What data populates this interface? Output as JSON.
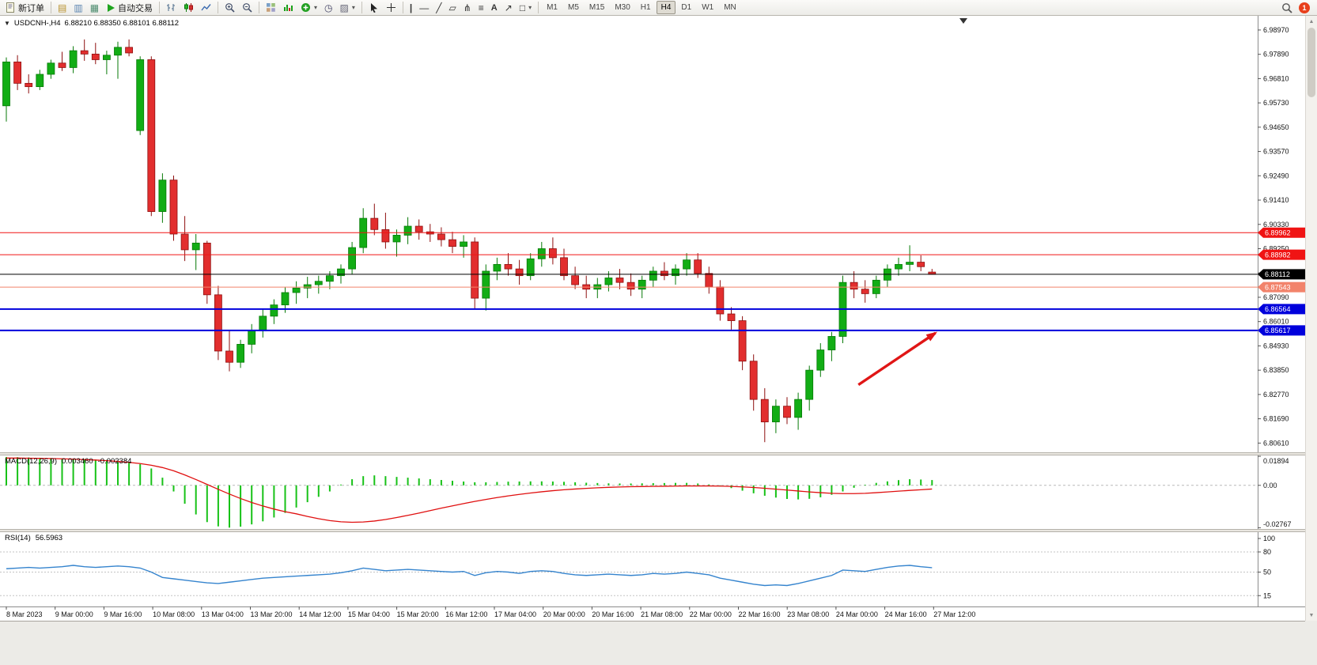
{
  "toolbar": {
    "new_order_label": "新订单",
    "autotrading_label": "自动交易",
    "timeframes": [
      "M1",
      "M5",
      "M15",
      "M30",
      "H1",
      "H4",
      "D1",
      "W1",
      "MN"
    ],
    "active_timeframe": "H4",
    "notification_badge": "1"
  },
  "chart": {
    "symbol_period": "USDCNH-,H4",
    "ohlc": "6.88210 6.88350 6.88101 6.88112"
  },
  "icons": {
    "one_click_caret": "▼",
    "caret_down": "▾",
    "new_chart": "▤",
    "profiles": "▥",
    "market_watch": "▦",
    "tile": "⊞",
    "clock": "◷",
    "snapshot": "▨",
    "vline": "|",
    "hline": "—",
    "trendline": "╱",
    "channel": "▱",
    "pitchfork": "⋔",
    "fibonacci": "≡",
    "text_tool": "A",
    "arrow_tool": "↗",
    "shapes": "□",
    "scrollbar_up": "▲",
    "scrollbar_down": "▼"
  },
  "colors": {
    "candle_up": "#12AD15",
    "candle_up_border": "#077A07",
    "candle_down": "#E22E2E",
    "candle_down_border": "#8E0F0F",
    "macd_histogram": "#17C217",
    "macd_signal": "#E01010",
    "rsi_line": "#3584CE",
    "hline_red": "#F01414",
    "hline_black": "#000000",
    "hline_salmon": "#F2836B",
    "hline_blue": "#0000DC",
    "arrow": "#E01616",
    "badge": "#E8401C",
    "background": "#FFFFFF"
  },
  "chart_data": {
    "type": "candlestick",
    "symbol": "USDCNH-",
    "period": "H4",
    "ohlc_current": {
      "open": "6.88210",
      "high": "6.88350",
      "low": "6.88101",
      "close": "6.88112"
    },
    "y_axis": {
      "min": 6.8061,
      "max": 6.9897,
      "ticks": [
        6.9897,
        6.9789,
        6.9681,
        6.9573,
        6.9465,
        6.9357,
        6.9249,
        6.9141,
        6.9033,
        6.8925,
        6.8817,
        6.8709,
        6.8601,
        6.8493,
        6.8385,
        6.8277,
        6.8169,
        6.8061
      ]
    },
    "x_labels": [
      "8 Mar 2023",
      "9 Mar 00:00",
      "9 Mar 16:00",
      "10 Mar 08:00",
      "13 Mar 04:00",
      "13 Mar 20:00",
      "14 Mar 12:00",
      "15 Mar 04:00",
      "15 Mar 20:00",
      "16 Mar 12:00",
      "17 Mar 04:00",
      "20 Mar 00:00",
      "20 Mar 16:00",
      "21 Mar 08:00",
      "22 Mar 00:00",
      "22 Mar 16:00",
      "23 Mar 08:00",
      "24 Mar 00:00",
      "24 Mar 16:00",
      "27 Mar 12:00"
    ],
    "hlines": [
      {
        "price": 6.89962,
        "label": "6.89962",
        "color": "#F01414",
        "width": 1
      },
      {
        "price": 6.88982,
        "label": "6.88982",
        "color": "#F01414",
        "width": 1
      },
      {
        "price": 6.88112,
        "label": "6.88112",
        "color": "#000000",
        "width": 1
      },
      {
        "price": 6.87543,
        "label": "6.87543",
        "color": "#F2836B",
        "width": 1
      },
      {
        "price": 6.86564,
        "label": "6.86564",
        "color": "#0000DC",
        "width": 2
      },
      {
        "price": 6.85617,
        "label": "6.85617",
        "color": "#0000DC",
        "width": 2
      }
    ],
    "annotations": {
      "trend_arrow": {
        "t1": 76.4,
        "p1": 6.832,
        "t2": 83.3,
        "p2": 6.855
      }
    },
    "candles": [
      [
        6.956,
        6.9775,
        6.949,
        6.9755
      ],
      [
        6.9755,
        6.9785,
        6.963,
        6.966
      ],
      [
        6.966,
        6.97,
        6.9615,
        6.9645
      ],
      [
        6.9645,
        6.972,
        6.963,
        6.97
      ],
      [
        6.97,
        6.9765,
        6.968,
        6.975
      ],
      [
        6.975,
        6.98,
        6.9715,
        6.973
      ],
      [
        6.973,
        6.9825,
        6.9705,
        6.9805
      ],
      [
        6.9805,
        6.9855,
        6.976,
        6.979
      ],
      [
        6.979,
        6.984,
        6.9745,
        6.9765
      ],
      [
        6.9765,
        6.9805,
        6.97,
        6.9785
      ],
      [
        6.9785,
        6.9845,
        6.968,
        6.982
      ],
      [
        6.982,
        6.9855,
        6.978,
        6.9795
      ],
      [
        6.945,
        6.978,
        6.943,
        6.9765
      ],
      [
        6.9765,
        6.978,
        6.907,
        6.909
      ],
      [
        6.909,
        6.926,
        6.904,
        6.923
      ],
      [
        6.923,
        6.925,
        6.896,
        6.899
      ],
      [
        6.899,
        6.907,
        6.887,
        6.892
      ],
      [
        6.892,
        6.899,
        6.883,
        6.895
      ],
      [
        6.895,
        6.896,
        6.868,
        6.872
      ],
      [
        6.872,
        6.876,
        6.843,
        6.847
      ],
      [
        6.847,
        6.856,
        6.838,
        6.842
      ],
      [
        6.842,
        6.852,
        6.8395,
        6.85
      ],
      [
        6.85,
        6.859,
        6.846,
        6.856
      ],
      [
        6.856,
        6.8655,
        6.853,
        6.8625
      ],
      [
        6.8625,
        6.87,
        6.859,
        6.8675
      ],
      [
        6.8675,
        6.8755,
        6.864,
        6.873
      ],
      [
        6.873,
        6.878,
        6.868,
        6.875
      ],
      [
        6.875,
        6.88,
        6.8705,
        6.8765
      ],
      [
        6.8765,
        6.8805,
        6.8725,
        6.878
      ],
      [
        6.878,
        6.8825,
        6.8745,
        6.8805
      ],
      [
        6.8805,
        6.8855,
        6.877,
        6.8835
      ],
      [
        6.8835,
        6.8955,
        6.881,
        6.893
      ],
      [
        6.893,
        6.9105,
        6.8905,
        6.906
      ],
      [
        6.906,
        6.9125,
        6.8985,
        6.901
      ],
      [
        6.901,
        6.9085,
        6.8925,
        6.8955
      ],
      [
        6.8955,
        6.901,
        6.889,
        6.8985
      ],
      [
        6.8985,
        6.9065,
        6.8945,
        6.9025
      ],
      [
        6.9025,
        6.9055,
        6.8965,
        6.9
      ],
      [
        6.9,
        6.9035,
        6.8955,
        6.899
      ],
      [
        6.899,
        6.902,
        6.8935,
        6.8965
      ],
      [
        6.8965,
        6.9,
        6.8905,
        6.8935
      ],
      [
        6.8935,
        6.8985,
        6.8885,
        6.8955
      ],
      [
        6.8955,
        6.8975,
        6.8655,
        6.8705
      ],
      [
        6.8705,
        6.8855,
        6.865,
        6.8825
      ],
      [
        6.8825,
        6.8885,
        6.8785,
        6.8855
      ],
      [
        6.8855,
        6.8905,
        6.8805,
        6.8835
      ],
      [
        6.8835,
        6.8875,
        6.8765,
        6.8805
      ],
      [
        6.8805,
        6.8905,
        6.8785,
        6.888
      ],
      [
        6.888,
        6.8955,
        6.8845,
        6.8925
      ],
      [
        6.8925,
        6.8975,
        6.8855,
        6.8885
      ],
      [
        6.8885,
        6.8925,
        6.8785,
        6.8805
      ],
      [
        6.8805,
        6.8845,
        6.8745,
        6.8765
      ],
      [
        6.8765,
        6.8805,
        6.8705,
        6.8745
      ],
      [
        6.8745,
        6.8795,
        6.8705,
        6.8765
      ],
      [
        6.8765,
        6.8825,
        6.8735,
        6.8795
      ],
      [
        6.8795,
        6.8835,
        6.8745,
        6.8775
      ],
      [
        6.8775,
        6.8815,
        6.8715,
        6.8745
      ],
      [
        6.8745,
        6.8805,
        6.8705,
        6.8785
      ],
      [
        6.8785,
        6.8845,
        6.8755,
        6.8825
      ],
      [
        6.8825,
        6.8865,
        6.8785,
        6.8805
      ],
      [
        6.8805,
        6.8855,
        6.8765,
        6.8835
      ],
      [
        6.8835,
        6.8905,
        6.8805,
        6.8875
      ],
      [
        6.8875,
        6.8905,
        6.8795,
        6.8815
      ],
      [
        6.8815,
        6.8845,
        6.8725,
        6.8755
      ],
      [
        6.8755,
        6.8785,
        6.8605,
        6.8635
      ],
      [
        6.8635,
        6.8665,
        6.8565,
        6.8605
      ],
      [
        6.8605,
        6.8625,
        6.8385,
        6.8425
      ],
      [
        6.8425,
        6.8455,
        6.8205,
        6.8255
      ],
      [
        6.8255,
        6.8305,
        6.8065,
        6.8155
      ],
      [
        6.8155,
        6.8255,
        6.8105,
        6.8225
      ],
      [
        6.8225,
        6.8265,
        6.8145,
        6.8175
      ],
      [
        6.8175,
        6.8285,
        6.812,
        6.8255
      ],
      [
        6.8255,
        6.8405,
        6.8205,
        6.8385
      ],
      [
        6.8385,
        6.8505,
        6.8355,
        6.8475
      ],
      [
        6.8475,
        6.8555,
        6.8425,
        6.8535
      ],
      [
        6.8535,
        6.8805,
        6.8505,
        6.8775
      ],
      [
        6.8775,
        6.8825,
        6.8705,
        6.8745
      ],
      [
        6.8745,
        6.8785,
        6.8685,
        6.8725
      ],
      [
        6.8725,
        6.8805,
        6.8705,
        6.8785
      ],
      [
        6.8785,
        6.8855,
        6.8755,
        6.8835
      ],
      [
        6.8835,
        6.8885,
        6.8805,
        6.8855
      ],
      [
        6.8855,
        6.894,
        6.8825,
        6.8865
      ],
      [
        6.8865,
        6.8895,
        6.8825,
        6.8845
      ],
      [
        6.8821,
        6.8835,
        6.881,
        6.88112
      ]
    ],
    "macd": {
      "name": "MACD(12,26,9)",
      "value_main": "0.003460",
      "value_signal": "-0.002384",
      "axis_labels": [
        "0.01894",
        "0.00",
        "-0.02767"
      ],
      "histogram": [
        0.0185,
        0.0184,
        0.0182,
        0.018,
        0.0178,
        0.0176,
        0.0174,
        0.0172,
        0.0169,
        0.0165,
        0.016,
        0.0152,
        0.0138,
        0.011,
        0.005,
        -0.004,
        -0.012,
        -0.019,
        -0.024,
        -0.0268,
        -0.0276,
        -0.027,
        -0.0255,
        -0.0235,
        -0.021,
        -0.018,
        -0.0145,
        -0.011,
        -0.0075,
        -0.004,
        0.0005,
        0.004,
        0.006,
        0.0065,
        0.006,
        0.0055,
        0.005,
        0.0045,
        0.004,
        0.0035,
        0.003,
        0.0025,
        0.002,
        0.002,
        0.0022,
        0.0024,
        0.0025,
        0.0026,
        0.0026,
        0.0025,
        0.0023,
        0.002,
        0.0017,
        0.0015,
        0.0013,
        0.0012,
        0.0012,
        0.0013,
        0.0014,
        0.0015,
        0.0016,
        0.0016,
        0.0012,
        0.0006,
        -0.0004,
        -0.0018,
        -0.0035,
        -0.0052,
        -0.0068,
        -0.008,
        -0.0089,
        -0.0092,
        -0.0088,
        -0.0078,
        -0.0062,
        -0.004,
        -0.0016,
        0.0004,
        0.0016,
        0.0026,
        0.0034,
        0.004,
        0.0038,
        0.00346
      ],
      "signal": [
        0.0178,
        0.0178,
        0.0177,
        0.0176,
        0.0175,
        0.0173,
        0.0171,
        0.0168,
        0.0165,
        0.0161,
        0.0156,
        0.015,
        0.0142,
        0.0131,
        0.0116,
        0.0095,
        0.0068,
        0.0038,
        0.0006,
        -0.0026,
        -0.0057,
        -0.0086,
        -0.0112,
        -0.0135,
        -0.0155,
        -0.0172,
        -0.0186,
        -0.0203,
        -0.0218,
        -0.023,
        -0.0238,
        -0.0241,
        -0.0239,
        -0.0233,
        -0.0223,
        -0.021,
        -0.0196,
        -0.0181,
        -0.0165,
        -0.0149,
        -0.0134,
        -0.0119,
        -0.0105,
        -0.0092,
        -0.008,
        -0.0069,
        -0.0059,
        -0.005,
        -0.0042,
        -0.0035,
        -0.0029,
        -0.0024,
        -0.002,
        -0.0016,
        -0.0013,
        -0.0011,
        -0.0009,
        -0.0008,
        -0.0007,
        -0.0006,
        -0.0005,
        -0.0004,
        -0.0004,
        -0.0004,
        -0.0005,
        -0.0007,
        -0.001,
        -0.0014,
        -0.0019,
        -0.0025,
        -0.0031,
        -0.0037,
        -0.0043,
        -0.0048,
        -0.0052,
        -0.0054,
        -0.0054,
        -0.0052,
        -0.0048,
        -0.0043,
        -0.0038,
        -0.0033,
        -0.0029,
        -0.0024
      ]
    },
    "rsi": {
      "name": "RSI(14)",
      "value": "56.5963",
      "axis_labels": [
        "100",
        "80",
        "50",
        "15"
      ],
      "levels": [
        80,
        50,
        15
      ],
      "values": [
        55,
        56,
        57,
        56,
        57,
        58,
        60,
        58,
        57,
        58,
        59,
        58,
        56,
        50,
        42,
        40,
        38,
        36,
        34,
        33,
        35,
        37,
        39,
        41,
        42,
        43,
        44,
        45,
        46,
        47,
        49,
        52,
        56,
        54,
        52,
        53,
        54,
        53,
        52,
        51,
        50,
        51,
        45,
        49,
        51,
        50,
        48,
        51,
        52,
        51,
        48,
        46,
        45,
        46,
        47,
        46,
        45,
        46,
        48,
        47,
        48,
        50,
        48,
        46,
        41,
        38,
        35,
        32,
        30,
        31,
        30,
        33,
        37,
        41,
        45,
        53,
        52,
        51,
        54,
        57,
        59,
        60,
        58,
        56.6
      ]
    }
  }
}
